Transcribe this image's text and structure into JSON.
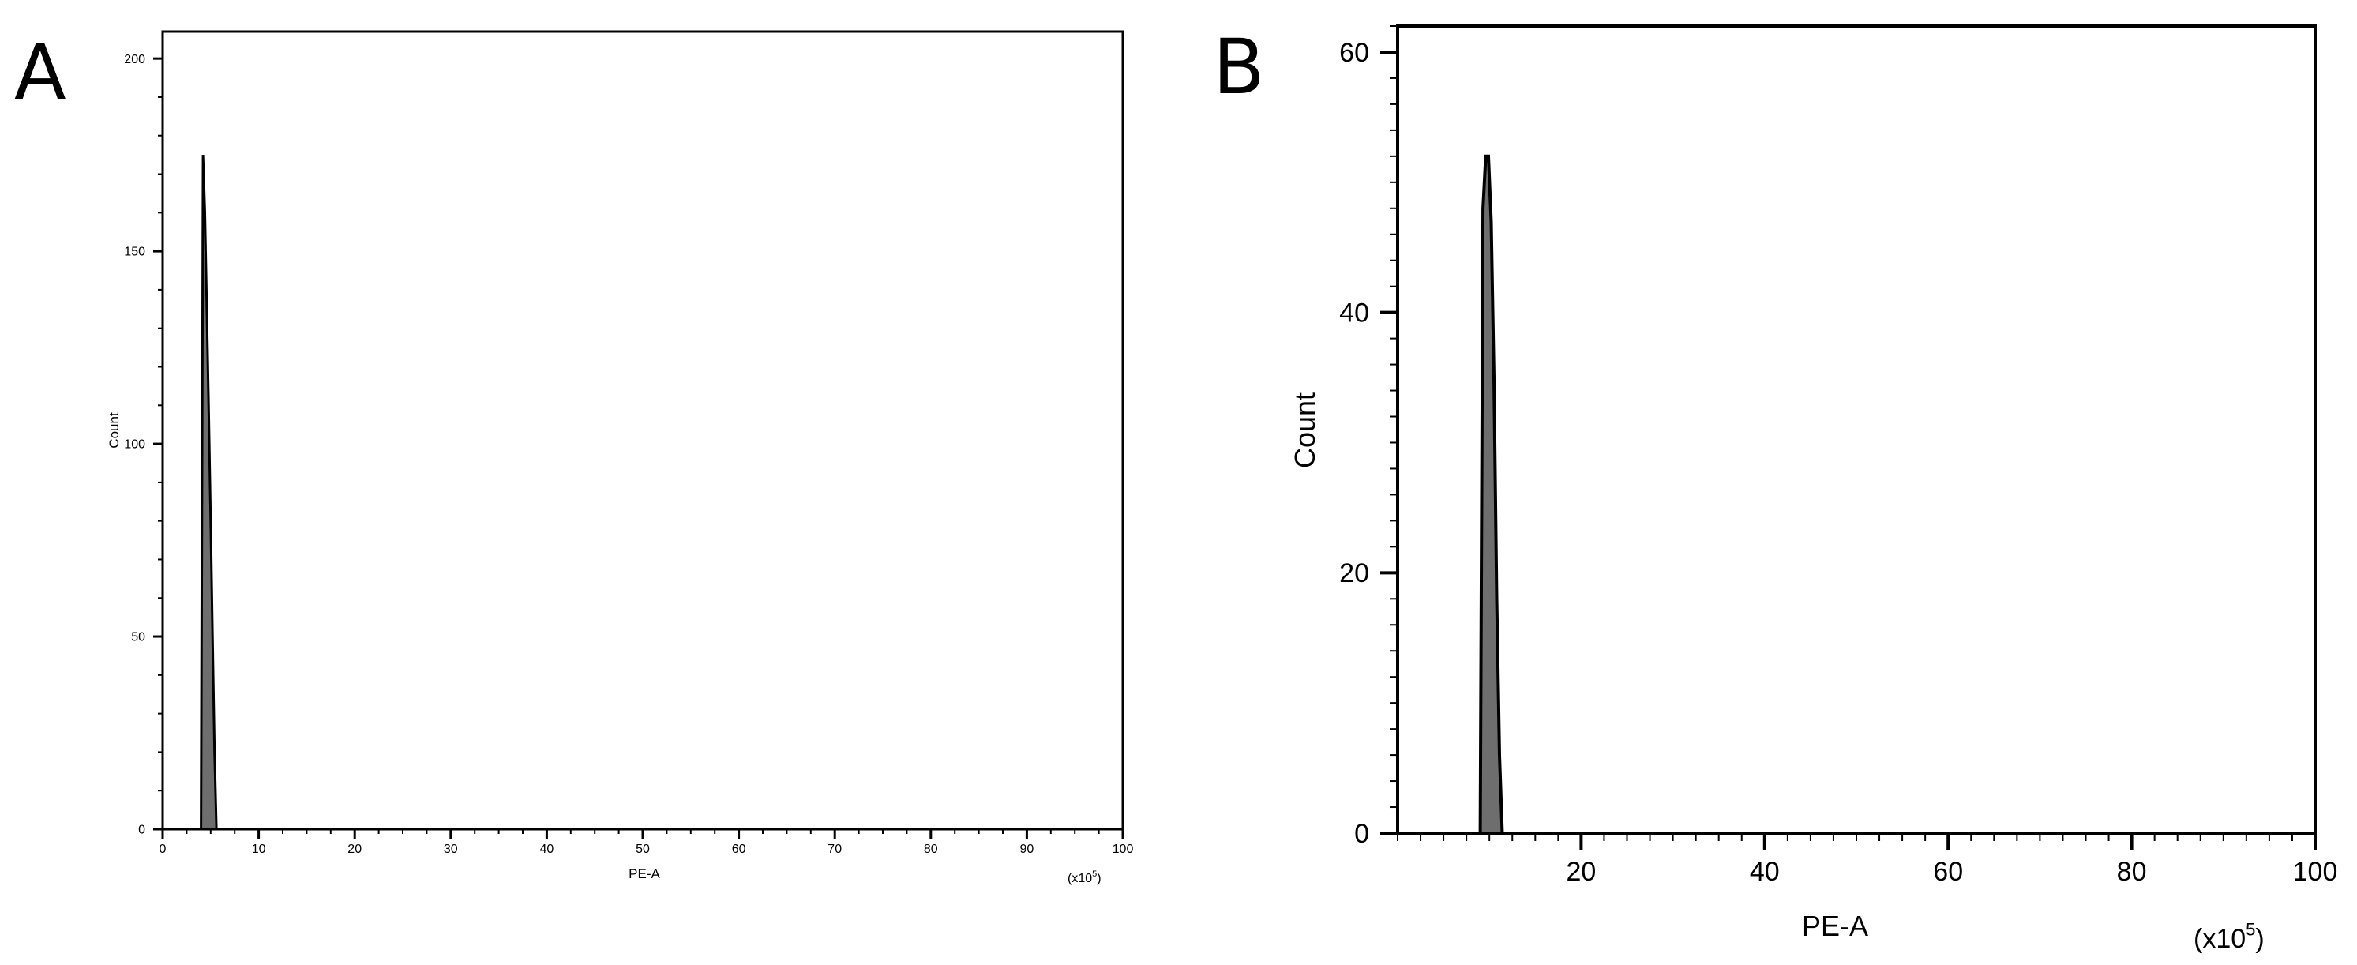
{
  "chart_data": [
    {
      "panel": "A",
      "type": "area",
      "xlabel": "PE-A",
      "ylabel": "Count",
      "x_unit": "(x10^5)",
      "xlim": [
        0,
        100
      ],
      "ylim": [
        0,
        207
      ],
      "xticks": [
        0,
        10,
        20,
        30,
        40,
        50,
        60,
        70,
        80,
        90,
        100
      ],
      "yticks": [
        0,
        50,
        100,
        150,
        200
      ],
      "grid": false,
      "series": [
        {
          "x": [
            4.0,
            4.2,
            4.4,
            4.6,
            4.8,
            5.0,
            5.2,
            5.4,
            5.6
          ],
          "values": [
            0,
            175,
            160,
            135,
            108,
            80,
            50,
            20,
            0
          ]
        }
      ]
    },
    {
      "panel": "B",
      "type": "area",
      "xlabel": "PE-A",
      "ylabel": "Count",
      "x_unit": "(x10^5)",
      "xlim": [
        0,
        100
      ],
      "ylim": [
        0,
        62
      ],
      "xticks": [
        20,
        40,
        60,
        80,
        100
      ],
      "yticks": [
        0,
        20,
        40,
        60
      ],
      "grid": false,
      "series": [
        {
          "x": [
            9.0,
            9.3,
            9.6,
            9.9,
            10.2,
            10.5,
            10.8,
            11.1,
            11.4,
            11.7,
            12.0
          ],
          "values": [
            0,
            48,
            52,
            52,
            47,
            35,
            18,
            6,
            0,
            0,
            0
          ]
        }
      ]
    }
  ]
}
